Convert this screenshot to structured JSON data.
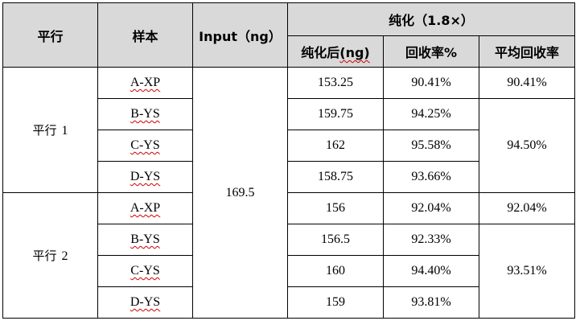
{
  "header": {
    "col_group": "平行",
    "col_sample": "样本",
    "col_input_main": "Input",
    "col_input_unit": "（ng）",
    "purify_group": "纯化（1.8×）",
    "sub_after": "纯化后",
    "sub_after_unit": "(ng)",
    "sub_recovery": "回收率%",
    "sub_avg": "平均回收率"
  },
  "input_value": "169.5",
  "groups": [
    {
      "label_cn": "平行",
      "label_num": "1",
      "rows": [
        {
          "sample": "A-XP",
          "after": "153.25",
          "recovery": "90.41%"
        },
        {
          "sample": "B-YS",
          "after": "159.75",
          "recovery": "94.25%"
        },
        {
          "sample": "C-YS",
          "after": "162",
          "recovery": "95.58%"
        },
        {
          "sample": "D-YS",
          "after": "158.75",
          "recovery": "93.66%"
        }
      ],
      "avg_xp": "90.41%",
      "avg_ys": "94.50%"
    },
    {
      "label_cn": "平行",
      "label_num": "2",
      "rows": [
        {
          "sample": "A-XP",
          "after": "156",
          "recovery": "92.04%"
        },
        {
          "sample": "B-YS",
          "after": "156.5",
          "recovery": "92.33%"
        },
        {
          "sample": "C-YS",
          "after": "160",
          "recovery": "94.40%"
        },
        {
          "sample": "D-YS",
          "after": "159",
          "recovery": "93.81%"
        }
      ],
      "avg_xp": "92.04%",
      "avg_ys": "93.51%"
    }
  ]
}
